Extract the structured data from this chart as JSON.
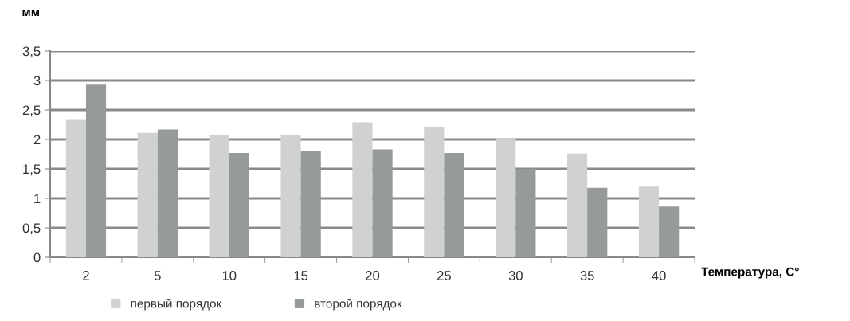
{
  "chart_data": {
    "type": "bar",
    "xlabel": "Температура, С°",
    "ylabel": "мм",
    "categories": [
      "2",
      "5",
      "10",
      "15",
      "20",
      "25",
      "30",
      "35",
      "40"
    ],
    "series": [
      {
        "name": "первый порядок",
        "color": "#d0d2d1",
        "values": [
          2.33,
          2.11,
          2.07,
          2.07,
          2.29,
          2.21,
          2.02,
          1.76,
          1.2
        ]
      },
      {
        "name": "второй порядок",
        "color": "#969a9a",
        "values": [
          2.93,
          2.17,
          1.77,
          1.8,
          1.83,
          1.77,
          1.5,
          1.18,
          0.86
        ]
      }
    ],
    "ylim": [
      0,
      3.5
    ],
    "yticks": [
      0,
      {
        "value": 0.5,
        "label": "0,5"
      },
      1,
      {
        "value": 1.5,
        "label": "1,5"
      },
      2,
      {
        "value": 2.5,
        "label": "2,5"
      },
      3,
      {
        "value": 3.5,
        "label": "3,5"
      }
    ],
    "grid": "y",
    "legend": "bottom"
  }
}
